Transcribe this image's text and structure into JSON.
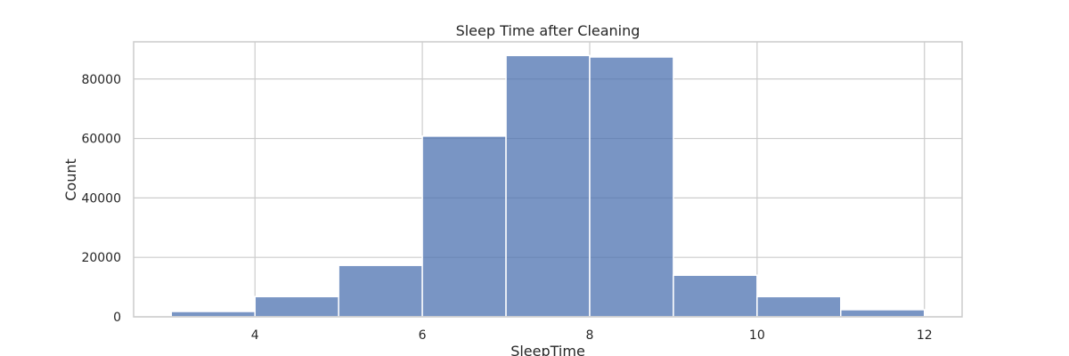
{
  "chart_data": {
    "type": "bar",
    "title": "Sleep Time after Cleaning",
    "xlabel": "SleepTime",
    "ylabel": "Count",
    "bins": [
      {
        "start": 3,
        "end": 4,
        "count": 1800
      },
      {
        "start": 4,
        "end": 5,
        "count": 6800
      },
      {
        "start": 5,
        "end": 6,
        "count": 17300
      },
      {
        "start": 6,
        "end": 7,
        "count": 60800
      },
      {
        "start": 7,
        "end": 8,
        "count": 87900
      },
      {
        "start": 8,
        "end": 9,
        "count": 87400
      },
      {
        "start": 9,
        "end": 10,
        "count": 14000
      },
      {
        "start": 10,
        "end": 11,
        "count": 6800
      },
      {
        "start": 11,
        "end": 12,
        "count": 2400
      }
    ],
    "xlim": [
      2.55,
      12.45
    ],
    "ylim": [
      0,
      92500
    ],
    "xticks": [
      4,
      6,
      8,
      10,
      12
    ],
    "yticks": [
      0,
      20000,
      40000,
      60000,
      80000
    ],
    "grid": true,
    "colors": {
      "bar": "#4c72b0",
      "grid": "#cccccc",
      "text": "#262626"
    }
  }
}
